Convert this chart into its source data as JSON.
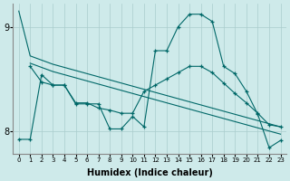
{
  "xlabel": "Humidex (Indice chaleur)",
  "background_color": "#ceeaea",
  "line_color": "#006868",
  "grid_color": "#aacccc",
  "xlim": [
    -0.5,
    23.5
  ],
  "ylim": [
    7.78,
    9.22
  ],
  "yticks": [
    8,
    9
  ],
  "xticks": [
    0,
    1,
    2,
    3,
    4,
    5,
    6,
    7,
    8,
    9,
    10,
    11,
    12,
    13,
    14,
    15,
    16,
    17,
    18,
    19,
    20,
    21,
    22,
    23
  ],
  "line1_x": [
    0,
    1,
    2,
    3,
    4,
    5,
    6,
    7,
    8,
    9,
    10,
    11,
    12,
    13,
    14,
    15,
    16,
    17,
    18,
    19,
    20,
    21,
    22,
    23
  ],
  "line1_y": [
    9.15,
    8.72,
    8.68,
    8.64,
    8.61,
    8.58,
    8.55,
    8.52,
    8.49,
    8.46,
    8.43,
    8.4,
    8.37,
    8.34,
    8.31,
    8.28,
    8.25,
    8.22,
    8.19,
    8.16,
    8.13,
    8.1,
    8.07,
    8.04
  ],
  "line2_x": [
    1,
    2,
    3,
    4,
    5,
    6,
    7,
    8,
    9,
    10,
    11,
    12,
    13,
    14,
    15,
    16,
    17,
    18,
    19,
    20,
    21,
    22,
    23
  ],
  "line2_y": [
    8.65,
    8.61,
    8.57,
    8.54,
    8.51,
    8.48,
    8.45,
    8.42,
    8.39,
    8.36,
    8.33,
    8.3,
    8.27,
    8.24,
    8.21,
    8.18,
    8.15,
    8.12,
    8.09,
    8.06,
    8.03,
    8.0,
    7.97
  ],
  "line3_x": [
    0,
    1,
    2,
    3,
    4,
    5,
    6,
    7,
    8,
    9,
    10,
    11,
    12,
    13,
    14,
    15,
    16,
    17,
    18,
    19,
    20,
    21,
    22,
    23
  ],
  "line3_y": [
    7.92,
    7.92,
    8.54,
    8.44,
    8.44,
    8.26,
    8.26,
    8.26,
    8.02,
    8.02,
    8.14,
    8.04,
    8.77,
    8.77,
    9.0,
    9.12,
    9.12,
    9.05,
    8.62,
    8.55,
    8.38,
    8.16,
    7.84,
    7.91
  ],
  "line4_x": [
    1,
    2,
    3,
    4,
    5,
    6,
    7,
    8,
    9,
    10,
    11,
    12,
    13,
    14,
    15,
    16,
    17,
    18,
    19,
    20,
    21,
    22,
    23
  ],
  "line4_y": [
    8.62,
    8.47,
    8.44,
    8.44,
    8.27,
    8.27,
    8.22,
    8.2,
    8.17,
    8.17,
    8.38,
    8.44,
    8.5,
    8.56,
    8.62,
    8.62,
    8.56,
    8.46,
    8.36,
    8.27,
    8.17,
    8.06,
    8.04
  ]
}
